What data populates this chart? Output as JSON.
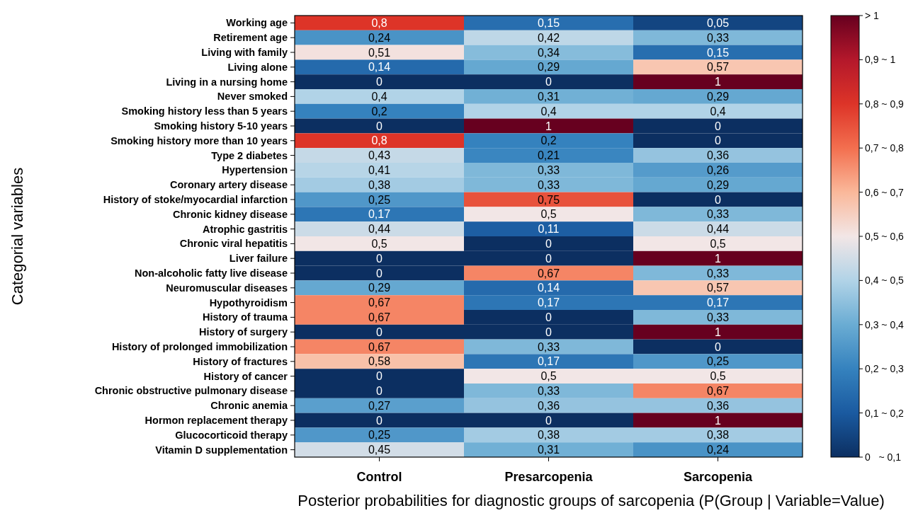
{
  "chart_data": {
    "type": "heatmap",
    "xlabel": "Posterior probabilities for diagnostic groups of sarcopenia (P(Group | Variable=Value)",
    "ylabel": "Categorial variables",
    "categories": [
      "Control",
      "Presarcopenia",
      "Sarcopenia"
    ],
    "y_categories": [
      "Working age",
      "Retirement age",
      "Living with family",
      "Living alone",
      "Living in a nursing home",
      "Never smoked",
      "Smoking history less than 5 years",
      "Smoking history 5-10 years",
      "Smoking history more than 10 years",
      "Type 2 diabetes",
      "Hypertension",
      "Coronary artery disease",
      "History of stoke/myocardial infarction",
      "Chronic kidney disease",
      "Atrophic gastritis",
      "Chronic viral hepatitis",
      "Liver failure",
      "Non-alcoholic fatty live disease",
      "Neuromuscular diseases",
      "Hypothyroidism",
      "History of trauma",
      "History of surgery",
      "History of prolonged immobilization",
      "History of fractures",
      "History of cancer",
      "Chronic obstructive pulmonary disease",
      "Chronic anemia",
      "Hormon replacement therapy",
      "Glucocorticoid therapy",
      "Vitamin D supplementation"
    ],
    "cells": [
      [
        0.8,
        0.15,
        0.05
      ],
      [
        0.24,
        0.42,
        0.33
      ],
      [
        0.51,
        0.34,
        0.15
      ],
      [
        0.14,
        0.29,
        0.57
      ],
      [
        0,
        0,
        1
      ],
      [
        0.4,
        0.31,
        0.29
      ],
      [
        0.2,
        0.4,
        0.4
      ],
      [
        0,
        1,
        0
      ],
      [
        0.8,
        0.2,
        0
      ],
      [
        0.43,
        0.21,
        0.36
      ],
      [
        0.41,
        0.33,
        0.26
      ],
      [
        0.38,
        0.33,
        0.29
      ],
      [
        0.25,
        0.75,
        0
      ],
      [
        0.17,
        0.5,
        0.33
      ],
      [
        0.44,
        0.11,
        0.44
      ],
      [
        0.5,
        0,
        0.5
      ],
      [
        0,
        0,
        1
      ],
      [
        0,
        0.67,
        0.33
      ],
      [
        0.29,
        0.14,
        0.57
      ],
      [
        0.67,
        0.17,
        0.17
      ],
      [
        0.67,
        0,
        0.33
      ],
      [
        0,
        0,
        1
      ],
      [
        0.67,
        0.33,
        0
      ],
      [
        0.58,
        0.17,
        0.25
      ],
      [
        0,
        0.5,
        0.5
      ],
      [
        0,
        0.33,
        0.67
      ],
      [
        0.27,
        0.36,
        0.36
      ],
      [
        0,
        0,
        1
      ],
      [
        0.25,
        0.38,
        0.38
      ],
      [
        0.45,
        0.31,
        0.24
      ]
    ],
    "cell_labels": [
      [
        "0,8",
        "0,15",
        "0,05"
      ],
      [
        "0,24",
        "0,42",
        "0,33"
      ],
      [
        "0,51",
        "0,34",
        "0,15"
      ],
      [
        "0,14",
        "0,29",
        "0,57"
      ],
      [
        "0",
        "0",
        "1"
      ],
      [
        "0,4",
        "0,31",
        "0,29"
      ],
      [
        "0,2",
        "0,4",
        "0,4"
      ],
      [
        "0",
        "1",
        "0"
      ],
      [
        "0,8",
        "0,2",
        "0"
      ],
      [
        "0,43",
        "0,21",
        "0,36"
      ],
      [
        "0,41",
        "0,33",
        "0,26"
      ],
      [
        "0,38",
        "0,33",
        "0,29"
      ],
      [
        "0,25",
        "0,75",
        "0"
      ],
      [
        "0,17",
        "0,5",
        "0,33"
      ],
      [
        "0,44",
        "0,11",
        "0,44"
      ],
      [
        "0,5",
        "0",
        "0,5"
      ],
      [
        "0",
        "0",
        "1"
      ],
      [
        "0",
        "0,67",
        "0,33"
      ],
      [
        "0,29",
        "0,14",
        "0,57"
      ],
      [
        "0,67",
        "0,17",
        "0,17"
      ],
      [
        "0,67",
        "0",
        "0,33"
      ],
      [
        "0",
        "0",
        "1"
      ],
      [
        "0,67",
        "0,33",
        "0"
      ],
      [
        "0,58",
        "0,17",
        "0,25"
      ],
      [
        "0",
        "0,5",
        "0,5"
      ],
      [
        "0",
        "0,33",
        "0,67"
      ],
      [
        "0,27",
        "0,36",
        "0,36"
      ],
      [
        "0",
        "0",
        "1"
      ],
      [
        "0,25",
        "0,38",
        "0,38"
      ],
      [
        "0,45",
        "0,31",
        "0,24"
      ]
    ],
    "colors": [
      "#0c2f61",
      "#1a5aa0",
      "#3582be",
      "#6aacd3",
      "#b1d3e7",
      "#f2e6e6",
      "#fab89a",
      "#f36f4f",
      "#dd3428",
      "#b4182b",
      "#67001f"
    ],
    "clim": [
      0,
      1
    ],
    "cticks": [
      {
        "value": 0,
        "label": "0   ~ 0,1"
      },
      {
        "value": 0.1,
        "label": "0,1 ~ 0,2"
      },
      {
        "value": 0.2,
        "label": "0,2 ~ 0,3"
      },
      {
        "value": 0.3,
        "label": "0,3 ~ 0,4"
      },
      {
        "value": 0.4,
        "label": "0,4 ~ 0,5"
      },
      {
        "value": 0.5,
        "label": "0,5 ~ 0,6"
      },
      {
        "value": 0.6,
        "label": "0,6 ~ 0,7"
      },
      {
        "value": 0.7,
        "label": "0,7 ~ 0,8"
      },
      {
        "value": 0.8,
        "label": "0,8 ~ 0,9"
      },
      {
        "value": 0.9,
        "label": "0,9 ~ 1"
      },
      {
        "value": 1,
        "label": "> 1"
      }
    ]
  }
}
